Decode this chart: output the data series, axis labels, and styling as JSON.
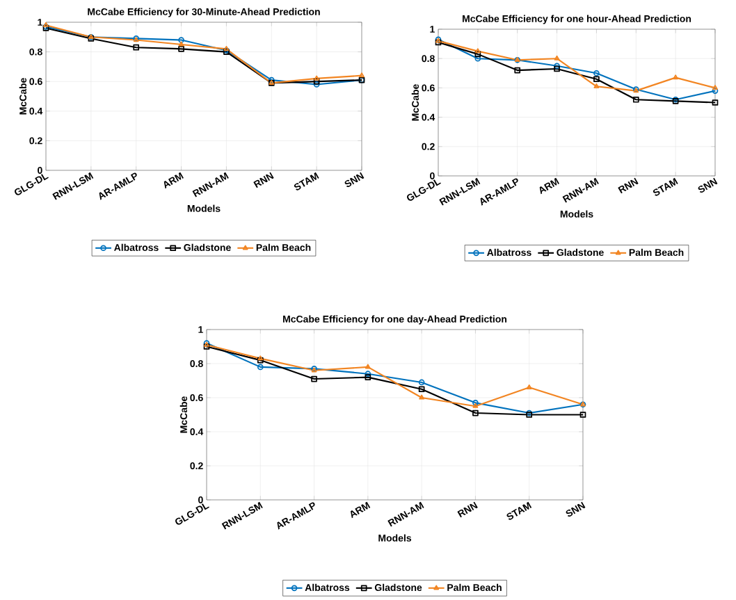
{
  "chart_data": [
    {
      "type": "line",
      "title": "McCabe Efficiency for 30-Minute-Ahead Prediction",
      "xlabel": "Models",
      "ylabel": "McCabe",
      "categories": [
        "GLG-DL",
        "RNN-LSM",
        "AR-AMLP",
        "ARM",
        "RNN-AM",
        "RNN",
        "STAM",
        "SNN"
      ],
      "ylim": [
        0,
        1
      ],
      "yticks": [
        0,
        0.2,
        0.4,
        0.6,
        0.8,
        1
      ],
      "grid": true,
      "legend": "bottom",
      "line_style": "solid",
      "series": [
        {
          "name": "Albatross",
          "color": "#0072bd",
          "marker": "circle",
          "values": [
            0.97,
            0.9,
            0.89,
            0.88,
            0.81,
            0.61,
            0.58,
            0.61
          ]
        },
        {
          "name": "Gladstone",
          "color": "#000000",
          "marker": "square",
          "values": [
            0.96,
            0.89,
            0.83,
            0.82,
            0.8,
            0.59,
            0.6,
            0.61
          ]
        },
        {
          "name": "Palm Beach",
          "color": "#f28522",
          "marker": "triangle",
          "values": [
            0.98,
            0.9,
            0.88,
            0.85,
            0.82,
            0.59,
            0.62,
            0.64
          ]
        }
      ]
    },
    {
      "type": "line",
      "title": "McCabe Efficiency for one hour-Ahead Prediction",
      "xlabel": "Models",
      "ylabel": "McCabe",
      "categories": [
        "GLG-DL",
        "RNN-LSM",
        "AR-AMLP",
        "ARM",
        "RNN-AM",
        "RNN",
        "STAM",
        "SNN"
      ],
      "ylim": [
        0,
        1
      ],
      "yticks": [
        0,
        0.2,
        0.4,
        0.6,
        0.8,
        1
      ],
      "grid": true,
      "legend": "bottom",
      "line_style": "solid",
      "series": [
        {
          "name": "Albatross",
          "color": "#0072bd",
          "marker": "circle",
          "values": [
            0.93,
            0.8,
            0.79,
            0.75,
            0.7,
            0.59,
            0.52,
            0.58
          ]
        },
        {
          "name": "Gladstone",
          "color": "#000000",
          "marker": "square",
          "values": [
            0.91,
            0.83,
            0.72,
            0.73,
            0.66,
            0.52,
            0.51,
            0.5
          ]
        },
        {
          "name": "Palm Beach",
          "color": "#f28522",
          "marker": "triangle",
          "values": [
            0.92,
            0.85,
            0.79,
            0.8,
            0.61,
            0.58,
            0.67,
            0.6
          ]
        }
      ]
    },
    {
      "type": "line",
      "title": "McCabe Efficiency for one day-Ahead Prediction",
      "xlabel": "Models",
      "ylabel": "McCabe",
      "categories": [
        "GLG-DL",
        "RNN-LSM",
        "AR-AMLP",
        "ARM",
        "RNN-AM",
        "RNN",
        "STAM",
        "SNN"
      ],
      "ylim": [
        0,
        1
      ],
      "yticks": [
        0,
        0.2,
        0.4,
        0.6,
        0.8,
        1
      ],
      "grid": true,
      "legend": "bottom",
      "line_style": "solid",
      "series": [
        {
          "name": "Albatross",
          "color": "#0072bd",
          "marker": "circle",
          "values": [
            0.92,
            0.78,
            0.77,
            0.74,
            0.69,
            0.57,
            0.51,
            0.56
          ]
        },
        {
          "name": "Gladstone",
          "color": "#000000",
          "marker": "square",
          "values": [
            0.9,
            0.82,
            0.71,
            0.72,
            0.65,
            0.51,
            0.5,
            0.5
          ]
        },
        {
          "name": "Palm Beach",
          "color": "#f28522",
          "marker": "triangle",
          "values": [
            0.91,
            0.83,
            0.76,
            0.78,
            0.6,
            0.55,
            0.66,
            0.56
          ]
        }
      ]
    }
  ]
}
